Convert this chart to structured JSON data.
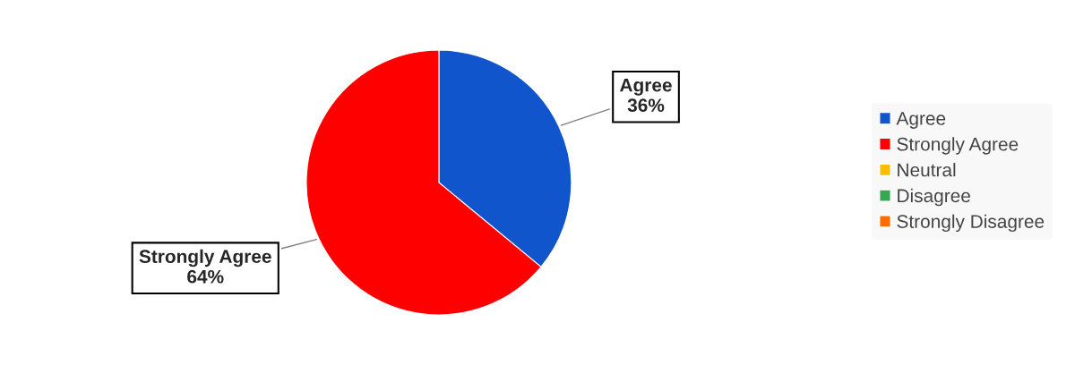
{
  "chart_data": {
    "type": "pie",
    "categories": [
      "Agree",
      "Strongly Agree",
      "Neutral",
      "Disagree",
      "Strongly Disagree"
    ],
    "values": [
      36,
      64,
      0,
      0,
      0
    ],
    "value_labels": [
      "36%",
      "64%",
      null,
      null,
      null
    ],
    "colors": [
      "#1155cc",
      "#ff0000",
      "#fbbc04",
      "#34a853",
      "#ff6d01"
    ],
    "legend": "right"
  }
}
